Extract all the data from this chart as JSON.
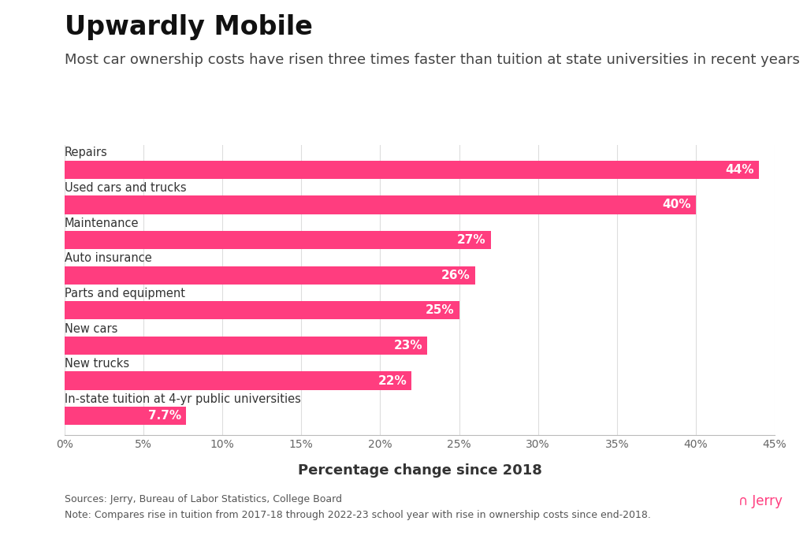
{
  "title": "Upwardly Mobile",
  "subtitle": "Most car ownership costs have risen three times faster than tuition at state universities in recent years",
  "categories": [
    "Repairs",
    "Used cars and trucks",
    "Maintenance",
    "Auto insurance",
    "Parts and equipment",
    "New cars",
    "New trucks",
    "In-state tuition at 4-yr public universities"
  ],
  "values": [
    44,
    40,
    27,
    26,
    25,
    23,
    22,
    7.7
  ],
  "labels": [
    "44%",
    "40%",
    "27%",
    "26%",
    "25%",
    "23%",
    "22%",
    "7.7%"
  ],
  "bar_color": "#FF3D7F",
  "xlabel": "Percentage change since 2018",
  "xlim": [
    0,
    45
  ],
  "xticks": [
    0,
    5,
    10,
    15,
    20,
    25,
    30,
    35,
    40,
    45
  ],
  "xticklabels": [
    "0%",
    "5%",
    "10%",
    "15%",
    "20%",
    "25%",
    "30%",
    "35%",
    "40%",
    "45%"
  ],
  "background_color": "#ffffff",
  "title_fontsize": 24,
  "subtitle_fontsize": 13,
  "category_fontsize": 10.5,
  "label_fontsize": 11,
  "xlabel_fontsize": 13,
  "source_text": "Sources: Jerry, Bureau of Labor Statistics, College Board\nNote: Compares rise in tuition from 2017-18 through 2022-23 school year with rise in ownership costs since end-2018.",
  "jerry_logo_text": "∩ Jerry",
  "jerry_color": "#FF3D7F"
}
